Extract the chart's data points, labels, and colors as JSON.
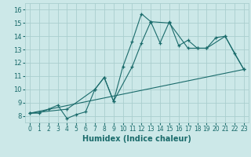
{
  "title": "",
  "xlabel": "Humidex (Indice chaleur)",
  "bg_color": "#cce8e8",
  "grid_color": "#aacece",
  "line_color": "#1a6b6b",
  "xlim": [
    -0.5,
    23.5
  ],
  "ylim": [
    7.5,
    16.5
  ],
  "xticks": [
    0,
    1,
    2,
    3,
    4,
    5,
    6,
    7,
    8,
    9,
    10,
    11,
    12,
    13,
    14,
    15,
    16,
    17,
    18,
    19,
    20,
    21,
    22,
    23
  ],
  "yticks": [
    8,
    9,
    10,
    11,
    12,
    13,
    14,
    15,
    16
  ],
  "line1_x": [
    0,
    1,
    2,
    3,
    4,
    5,
    6,
    7,
    8,
    9,
    10,
    11,
    12,
    13,
    14,
    15,
    16,
    17,
    18,
    19,
    20,
    21,
    22,
    23
  ],
  "line1_y": [
    8.2,
    8.2,
    8.5,
    8.8,
    7.8,
    8.1,
    8.3,
    10.0,
    10.9,
    9.1,
    11.7,
    13.6,
    15.7,
    15.1,
    13.5,
    15.1,
    13.3,
    13.7,
    13.1,
    13.1,
    13.9,
    14.0,
    12.7,
    11.5
  ],
  "line2_x": [
    0,
    4,
    7,
    8,
    9,
    11,
    12,
    13,
    15,
    17,
    18,
    19,
    21,
    23
  ],
  "line2_y": [
    8.2,
    8.5,
    10.0,
    10.9,
    9.1,
    11.7,
    13.5,
    15.1,
    15.0,
    13.1,
    13.1,
    13.1,
    14.0,
    11.5
  ],
  "line3_x": [
    0,
    23
  ],
  "line3_y": [
    8.2,
    11.5
  ],
  "xlabel_fontsize": 7,
  "tick_fontsize": 5.5
}
